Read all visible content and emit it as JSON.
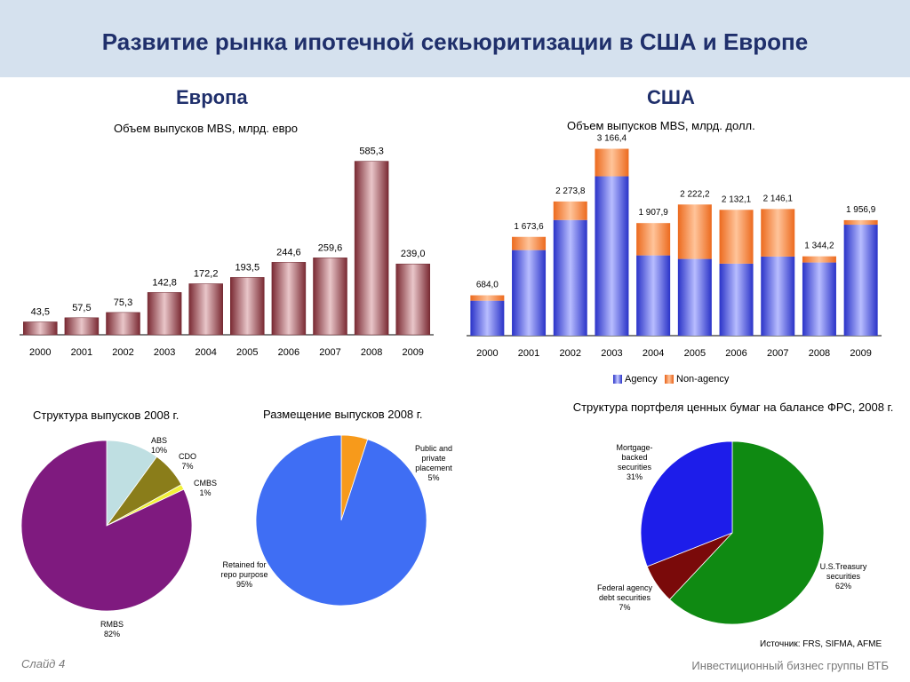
{
  "header": {
    "title": "Развитие рынка ипотечной секьюритизации в США и Европе"
  },
  "europe": {
    "title": "Европа"
  },
  "usa": {
    "title": "США"
  },
  "footer": {
    "slide": "Слайд 4",
    "brand": "Инвестиционный бизнес группы ВТБ"
  },
  "source": "Источник: FRS, SIFMA, AFME",
  "colors": {
    "header_bg": "#d5e1ee",
    "title": "#1f2f6b",
    "europe_bar": "#a2545d",
    "agency": "#4a53e8",
    "non_agency": "#f5813c"
  },
  "chart_data": [
    {
      "type": "bar",
      "title": "Объем выпусков MBS, млрд. евро",
      "categories": [
        "2000",
        "2001",
        "2002",
        "2003",
        "2004",
        "2005",
        "2006",
        "2007",
        "2008",
        "2009"
      ],
      "values": [
        43.5,
        57.5,
        75.3,
        142.8,
        172.2,
        193.5,
        244.6,
        259.6,
        585.3,
        239.0
      ],
      "value_labels": [
        "43,5",
        "57,5",
        "75,3",
        "142,8",
        "172,2",
        "193,5",
        "244,6",
        "259,6",
        "585,3",
        "239,0"
      ],
      "ylim": [
        0,
        620
      ]
    },
    {
      "type": "bar",
      "stacked": true,
      "title": "Объем выпусков MBS, млрд. долл.",
      "categories": [
        "2000",
        "2001",
        "2002",
        "2003",
        "2004",
        "2005",
        "2006",
        "2007",
        "2008",
        "2009"
      ],
      "series": [
        {
          "name": "Agency",
          "values": [
            592,
            1450,
            1960,
            2700,
            1360,
            1300,
            1220,
            1340,
            1240,
            1880
          ]
        },
        {
          "name": "Non-agency",
          "values": [
            92,
            223.6,
            313.8,
            466.4,
            547.9,
            922.2,
            912.1,
            806.1,
            104.2,
            76.9
          ]
        }
      ],
      "total_labels": [
        "684,0",
        "1 673,6",
        "2 273,8",
        "3 166,4",
        "1 907,9",
        "2 222,2",
        "2 132,1",
        "2 146,1",
        "1 344,2",
        "1 956,9"
      ],
      "ylim": [
        0,
        3400
      ],
      "legend": "bottom"
    },
    {
      "type": "pie",
      "title": "Структура выпусков 2008 г.",
      "slices": [
        {
          "name": "ABS",
          "pct": "10%",
          "value": 10,
          "color": "#bfdfe2"
        },
        {
          "name": "CDO",
          "pct": "7%",
          "value": 7,
          "color": "#8a7d1a"
        },
        {
          "name": "CMBS",
          "pct": "1%",
          "value": 1,
          "color": "#f2f23a"
        },
        {
          "name": "RMBS",
          "pct": "82%",
          "value": 82,
          "color": "#7f1a7f"
        }
      ]
    },
    {
      "type": "pie",
      "title": "Размещение выпусков 2008 г.",
      "slices": [
        {
          "name": "Public and private placement",
          "pct": "5%",
          "value": 5,
          "color": "#f79a1b"
        },
        {
          "name": "Retained for repo purpose",
          "pct": "95%",
          "value": 95,
          "color": "#3f6ef4"
        }
      ]
    },
    {
      "type": "pie",
      "title": "Структура портфеля ценных бумаг на балансе ФРС, 2008 г.",
      "slices": [
        {
          "name": "U.S.Treasury securities",
          "pct": "62%",
          "value": 62,
          "color": "#0f8a12"
        },
        {
          "name": "Federal agency debt securities",
          "pct": "7%",
          "value": 7,
          "color": "#7a0a0a"
        },
        {
          "name": "Mortgage-backed securities",
          "pct": "31%",
          "value": 31,
          "color": "#1d1dea"
        }
      ]
    }
  ]
}
